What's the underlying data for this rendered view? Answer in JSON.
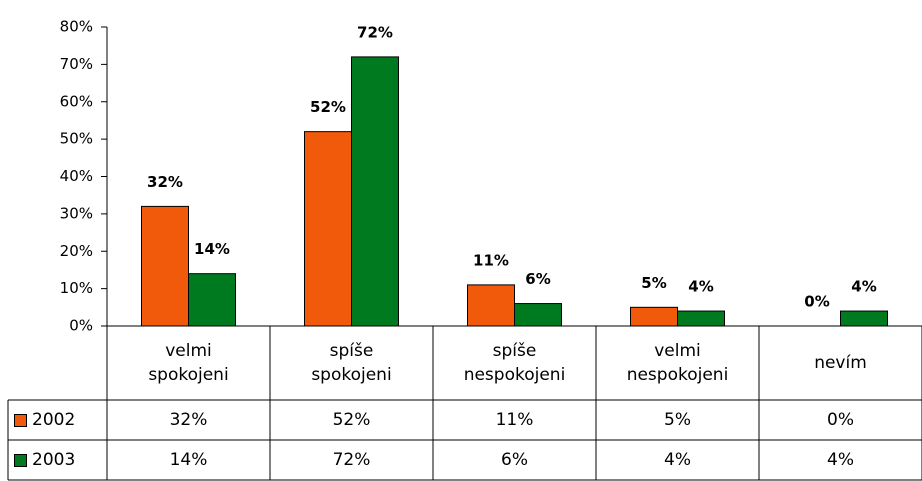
{
  "chart_data": {
    "type": "bar",
    "categories": [
      "velmi spokojeni",
      "spíše spokojeni",
      "spíše nespokojeni",
      "velmi nespokojeni",
      "nevím"
    ],
    "series": [
      {
        "name": "2002",
        "color": "#f05a0a",
        "values": [
          32,
          52,
          11,
          5,
          0
        ],
        "value_labels": [
          "32%",
          "52%",
          "11%",
          "5%",
          "0%"
        ]
      },
      {
        "name": "2003",
        "color": "#007a1f",
        "values": [
          14,
          72,
          6,
          4,
          4
        ],
        "value_labels": [
          "14%",
          "72%",
          "6%",
          "4%",
          "4%"
        ]
      }
    ],
    "ylim": [
      0,
      80
    ],
    "yticks": [
      {
        "value": 0,
        "label": "0%"
      },
      {
        "value": 10,
        "label": "10%"
      },
      {
        "value": 20,
        "label": "20%"
      },
      {
        "value": 30,
        "label": "30%"
      },
      {
        "value": 40,
        "label": "40%"
      },
      {
        "value": 50,
        "label": "50%"
      },
      {
        "value": 60,
        "label": "60%"
      },
      {
        "value": 70,
        "label": "70%"
      },
      {
        "value": 80,
        "label": "80%"
      }
    ],
    "data_table": true
  }
}
